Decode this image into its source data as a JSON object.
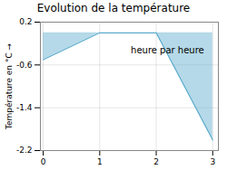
{
  "chart_data": {
    "type": "area",
    "title": "Evolution de la température",
    "ylabel": "Température en °C",
    "x": [
      0,
      1,
      2,
      3
    ],
    "values": [
      -0.5,
      0.0,
      0.0,
      -2.0
    ],
    "color": "#5aabcc",
    "xlim": [
      -0.05,
      3.1
    ],
    "ylim": [
      -2.2,
      0.2
    ],
    "xticks": [
      0,
      1,
      2,
      3
    ],
    "yticks": [
      0.2,
      -0.6,
      -1.4,
      -2.2
    ],
    "grid": true,
    "annotations": [
      {
        "text": "heure par heure",
        "x": 1.55,
        "y": -0.38
      }
    ]
  }
}
